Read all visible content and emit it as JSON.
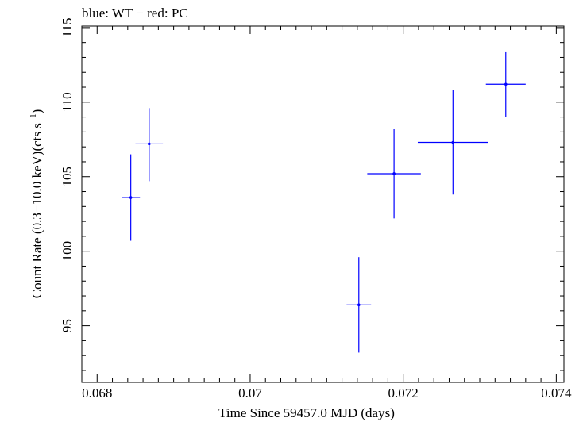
{
  "chart_data": {
    "type": "scatter",
    "title": "blue: WT − red: PC",
    "xlabel": "Time Since 59457.0 MJD (days)",
    "ylabel_main": "Count Rate (0.3−10.0 keV)(cts s",
    "ylabel_sup": "−1",
    "ylabel_close": ")",
    "xlim": [
      0.0678,
      0.0741
    ],
    "ylim": [
      91.2,
      115.1
    ],
    "xticks": [
      0.068,
      0.07,
      0.072,
      0.074
    ],
    "xtick_labels": [
      "0.068",
      "0.07",
      "0.072",
      "0.074"
    ],
    "yticks": [
      95,
      100,
      105,
      110,
      115
    ],
    "ytick_labels": [
      "95",
      "100",
      "105",
      "110",
      "115"
    ],
    "series": [
      {
        "color": "#0000ff",
        "points": [
          {
            "x": 0.06844,
            "y": 103.6,
            "xerr": 0.00012,
            "yerr_low": 2.9,
            "yerr_high": 2.9
          },
          {
            "x": 0.06868,
            "y": 107.2,
            "xerr": 0.00018,
            "yerr_low": 2.5,
            "yerr_high": 2.4
          },
          {
            "x": 0.07142,
            "y": 96.4,
            "xerr": 0.00016,
            "yerr_low": 3.2,
            "yerr_high": 3.2
          },
          {
            "x": 0.07188,
            "y": 105.2,
            "xerr": 0.00035,
            "yerr_low": 3.0,
            "yerr_high": 3.0
          },
          {
            "x": 0.07265,
            "y": 107.3,
            "xerr": 0.00046,
            "yerr_low": 3.5,
            "yerr_high": 3.5
          },
          {
            "x": 0.07334,
            "y": 111.2,
            "xerr": 0.00026,
            "yerr_low": 2.2,
            "yerr_high": 2.2
          }
        ]
      }
    ],
    "grid": false
  }
}
